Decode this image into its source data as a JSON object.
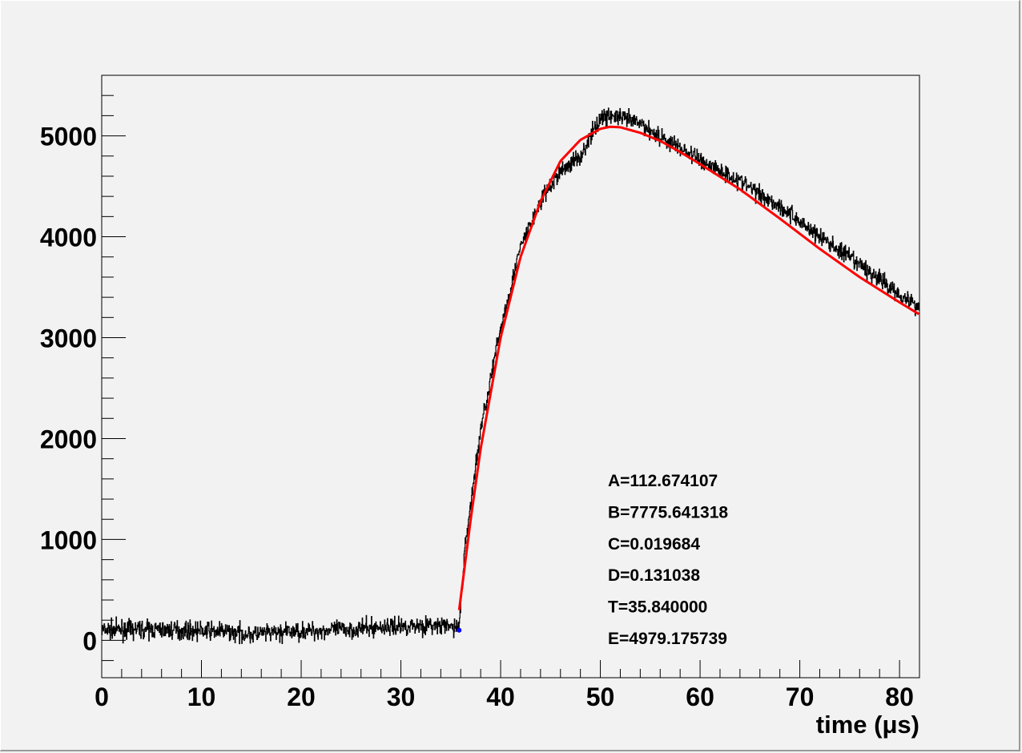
{
  "chart_data": {
    "type": "line",
    "title": "",
    "xlabel": "time (μs)",
    "ylabel": "",
    "xlim": [
      0,
      82
    ],
    "ylim": [
      -370,
      5600
    ],
    "grid": false,
    "x_ticks": [
      0,
      10,
      20,
      30,
      40,
      50,
      60,
      70,
      80
    ],
    "y_ticks": [
      0,
      1000,
      2000,
      3000,
      4000,
      5000
    ],
    "x_tick_labels": [
      "0",
      "10",
      "20",
      "30",
      "40",
      "50",
      "60",
      "70",
      "80"
    ],
    "y_tick_labels": [
      "0",
      "1000",
      "2000",
      "3000",
      "4000",
      "5000"
    ],
    "series": [
      {
        "kind": "histogram-waveform",
        "color": "#000000",
        "x": [
          0,
          4,
          8,
          12,
          15,
          20,
          25,
          28,
          32,
          35.8,
          36.5,
          38,
          40,
          42,
          44,
          46,
          48,
          50,
          51,
          52,
          54,
          56,
          58,
          60,
          64,
          68,
          72,
          76,
          80,
          82
        ],
        "y": [
          100,
          110,
          100,
          90,
          60,
          90,
          110,
          130,
          150,
          130,
          1000,
          2100,
          3100,
          3900,
          4350,
          4650,
          4800,
          5180,
          5200,
          5180,
          5120,
          4990,
          4880,
          4760,
          4550,
          4300,
          4000,
          3720,
          3430,
          3300
        ]
      },
      {
        "kind": "fit",
        "color": "#ff0000",
        "x": [
          35.84,
          37,
          38,
          40,
          42,
          44,
          46,
          48,
          50,
          51,
          52,
          54,
          56,
          58,
          60,
          64,
          68,
          72,
          76,
          80,
          82
        ],
        "y": [
          300,
          1200,
          1900,
          3000,
          3800,
          4350,
          4750,
          4960,
          5070,
          5090,
          5085,
          5030,
          4950,
          4840,
          4720,
          4470,
          4180,
          3880,
          3600,
          3350,
          3230
        ]
      }
    ],
    "marker": {
      "x": 35.84,
      "y": 100,
      "color": "#0000ff"
    },
    "annotations": [
      "A=112.674107",
      "B=7775.641318",
      "C=0.019684",
      "D=0.131038",
      "T=35.840000",
      "E=4979.175739"
    ]
  }
}
